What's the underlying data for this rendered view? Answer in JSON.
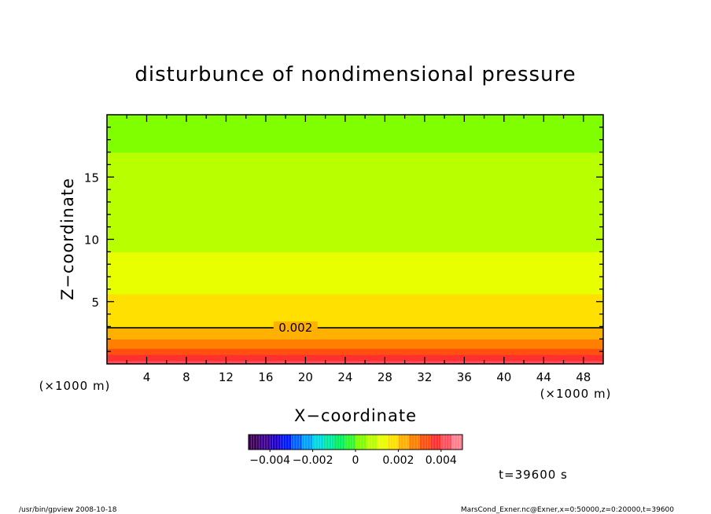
{
  "chart_data": {
    "type": "heatmap",
    "title": "disturbunce of nondimensional pressure",
    "xlabel": "X−coordinate",
    "ylabel": "Z−coordinate",
    "x_unit_left": "(×1000 m)",
    "x_unit_right": "(×1000 m)",
    "xlim": [
      0,
      50
    ],
    "ylim": [
      0,
      20
    ],
    "x_ticks": [
      4,
      8,
      12,
      16,
      20,
      24,
      28,
      32,
      36,
      40,
      44,
      48
    ],
    "x_tick_labels": [
      "4",
      "8",
      "12",
      "16",
      "20",
      "24",
      "28",
      "32",
      "36",
      "40",
      "44",
      "48"
    ],
    "y_ticks": [
      5,
      10,
      15
    ],
    "y_tick_labels": [
      "5",
      "10",
      "15"
    ],
    "contour": {
      "level": 0.002,
      "label": "0.002",
      "z": 2.9
    },
    "z_profile": [
      {
        "z": 0.0,
        "value": 0.0044
      },
      {
        "z": 0.6,
        "value": 0.0036
      },
      {
        "z": 1.3,
        "value": 0.003
      },
      {
        "z": 2.0,
        "value": 0.0025
      },
      {
        "z": 2.9,
        "value": 0.002
      },
      {
        "z": 5.0,
        "value": 0.0016
      },
      {
        "z": 8.0,
        "value": 0.0011
      },
      {
        "z": 11.0,
        "value": 0.0008
      },
      {
        "z": 14.0,
        "value": 0.0006
      },
      {
        "z": 17.0,
        "value": 0.0005
      },
      {
        "z": 20.0,
        "value": 0.0004
      }
    ],
    "colorbar": {
      "range": [
        -0.005,
        0.005
      ],
      "tick_values": [
        -0.004,
        -0.002,
        0,
        0.002,
        0.004
      ],
      "tick_labels": [
        "−0.004",
        "−0.002",
        "0",
        "0.002",
        "0.004"
      ],
      "colors": [
        "#3c0058",
        "#3b008c",
        "#2000c8",
        "#0018ff",
        "#0060ff",
        "#00a0ff",
        "#00d8e0",
        "#00e8a0",
        "#00f060",
        "#30f830",
        "#80ff00",
        "#b8ff00",
        "#e8ff00",
        "#ffe000",
        "#ffb000",
        "#ff8000",
        "#ff5010",
        "#ff3030",
        "#ff5060",
        "#ff8090"
      ]
    },
    "time_label": "t=39600 s"
  },
  "footer": {
    "left": "/usr/bin/gpview   2008-10-18",
    "right": "MarsCond_Exner.nc@Exner,x=0:50000,z=0:20000,t=39600"
  }
}
